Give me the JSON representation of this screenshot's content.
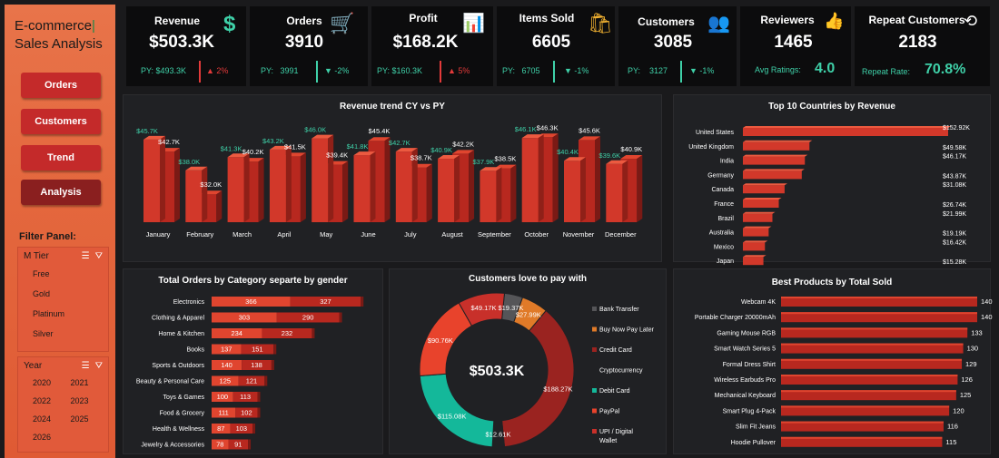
{
  "sidebar": {
    "title_line1": "E-commerce",
    "title_line2": "Sales Analysis",
    "nav": [
      "Orders",
      "Customers",
      "Trend",
      "Analysis"
    ],
    "active_nav": "Analysis",
    "filter_label": "Filter Panel:",
    "tier_slicer": {
      "label": "M Tier",
      "items": [
        "Free",
        "Gold",
        "Platinum",
        "Silver"
      ]
    },
    "year_slicer": {
      "label": "Year",
      "items": [
        "2020",
        "2021",
        "2022",
        "2023",
        "2024",
        "2025",
        "2026"
      ]
    }
  },
  "kpis": [
    {
      "title": "Revenue",
      "value": "$503.3K",
      "py_label": "PY:",
      "py": "$493.3K",
      "change": "2%",
      "direction": "up",
      "icon": "dollar-icon"
    },
    {
      "title": "Orders",
      "value": "3910",
      "py_label": "PY:",
      "py": "3991",
      "change": "-2%",
      "direction": "down",
      "icon": "cart-icon"
    },
    {
      "title": "Profit",
      "value": "$168.2K",
      "py_label": "PY:",
      "py": "$160.3K",
      "change": "5%",
      "direction": "up",
      "icon": "chart-icon"
    },
    {
      "title": "Items Sold",
      "value": "6605",
      "py_label": "PY:",
      "py": "6705",
      "change": "-1%",
      "direction": "down",
      "icon": "bag-icon"
    },
    {
      "title": "Customers",
      "value": "3085",
      "py_label": "PY:",
      "py": "3127",
      "change": "-1%",
      "direction": "down",
      "icon": "users-icon"
    },
    {
      "title": "Reviewers",
      "value": "1465",
      "sub_label": "Avg Ratings:",
      "sub_value": "4.0",
      "icon": "rating-icon"
    },
    {
      "title": "Repeat Customers",
      "value": "2183",
      "sub_label": "Repeat Rate:",
      "sub_value": "70.8%",
      "icon": "repeat-icon"
    }
  ],
  "colors": {
    "accent_red": "#d63a2a",
    "teal": "#3fd0a8",
    "panel": "#202124"
  },
  "chart_data": [
    {
      "type": "bar",
      "title": "Revenue trend CY vs PY",
      "categories": [
        "January",
        "February",
        "March",
        "April",
        "May",
        "June",
        "July",
        "August",
        "September",
        "October",
        "November",
        "December"
      ],
      "series": [
        {
          "name": "CY",
          "values": [
            45.7,
            38.0,
            41.3,
            43.2,
            46.0,
            41.8,
            42.7,
            40.9,
            37.9,
            46.1,
            40.4,
            39.6
          ]
        },
        {
          "name": "PY",
          "values": [
            42.7,
            32.0,
            40.2,
            41.5,
            39.4,
            45.4,
            38.7,
            42.2,
            38.5,
            46.3,
            45.6,
            40.9
          ]
        }
      ],
      "cy_labels": [
        "$45.7K",
        "$38.0K",
        "$41.3K",
        "$43.2K",
        "$46.0K",
        "$41.8K",
        "$42.7K",
        "$40.9K",
        "$37.9K",
        "$46.1K",
        "$40.4K",
        "$39.6K"
      ],
      "py_labels": [
        "$42.7K",
        "$32.0K",
        "$40.2K",
        "$41.5K",
        "$39.4K",
        "$45.4K",
        "$38.7K",
        "$42.2K",
        "$38.5K",
        "$46.3K",
        "$45.6K",
        "$40.9K"
      ]
    },
    {
      "type": "bar",
      "title": "Top 10 Countries by Revenue",
      "categories": [
        "United States",
        "United Kingdom",
        "India",
        "Germany",
        "Canada",
        "France",
        "Brazil",
        "Australia",
        "Mexico",
        "Japan"
      ],
      "values": [
        152.92,
        49.58,
        46.17,
        43.87,
        31.08,
        26.74,
        21.99,
        19.19,
        16.42,
        15.28
      ],
      "labels": [
        "$152.92K",
        "$49.58K",
        "$46.17K",
        "$43.87K",
        "$31.08K",
        "$26.74K",
        "$21.99K",
        "$19.19K",
        "$16.42K",
        "$15.28K"
      ]
    },
    {
      "type": "bar",
      "title": "Total Orders by Category separte by gender",
      "categories": [
        "Electronics",
        "Clothing & Apparel",
        "Home & Kitchen",
        "Books",
        "Sports & Outdoors",
        "Beauty & Personal Care",
        "Toys & Games",
        "Food & Grocery",
        "Health & Wellness",
        "Jewelry & Accessories"
      ],
      "series": [
        {
          "values": [
            366,
            303,
            234,
            137,
            140,
            125,
            100,
            111,
            87,
            78
          ]
        },
        {
          "values": [
            327,
            290,
            232,
            151,
            138,
            121,
            113,
            102,
            103,
            91
          ]
        }
      ]
    },
    {
      "type": "pie",
      "title": "Customers love to pay with",
      "center_label": "$503.3K",
      "categories": [
        "Bank Transfer",
        "Buy Now Pay Later",
        "Credit Card",
        "Cryptocurrency",
        "Debit Card",
        "PayPal",
        "UPI / Digital Wallet"
      ],
      "values": [
        19.37,
        27.99,
        188.27,
        12.61,
        115.08,
        90.76,
        49.17
      ],
      "labels": [
        "$19.37K",
        "$27.99K",
        "$188.27K",
        "$12.61K",
        "$115.08K",
        "$90.76K",
        "$49.17K"
      ],
      "slice_colors": [
        "#555558",
        "#e07a28",
        "#9a2320",
        "#202124",
        "#14b89a",
        "#e8432c",
        "#c8302a"
      ]
    },
    {
      "type": "bar",
      "title": "Best Products by Total Sold",
      "categories": [
        "Webcam 4K",
        "Portable Charger 20000mAh",
        "Gaming Mouse RGB",
        "Smart Watch Series 5",
        "Formal Dress Shirt",
        "Wireless Earbuds Pro",
        "Mechanical Keyboard",
        "Smart Plug 4-Pack",
        "Slim Fit Jeans",
        "Hoodie Pullover"
      ],
      "values": [
        140,
        140,
        133,
        130,
        129,
        126,
        125,
        120,
        116,
        115
      ]
    }
  ]
}
